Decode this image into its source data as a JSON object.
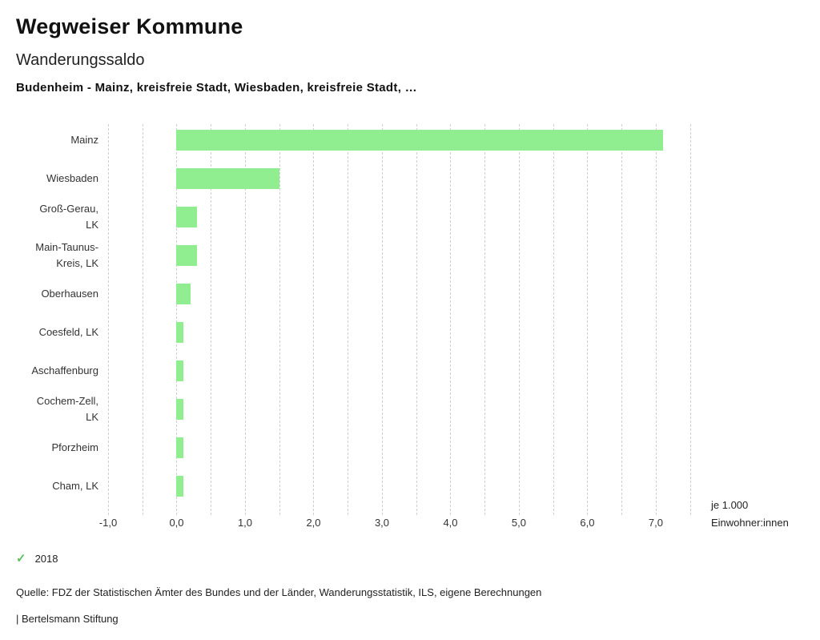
{
  "header": {
    "title": "Wegweiser Kommune",
    "subtitle": "Wanderungssaldo",
    "chart_title": "Budenheim - Mainz, kreisfreie Stadt, Wiesbaden, kreisfreie Stadt, …"
  },
  "chart_data": {
    "type": "bar",
    "orientation": "horizontal",
    "title": "Budenheim - Mainz, kreisfreie Stadt, Wiesbaden, kreisfreie Stadt, …",
    "categories": [
      "Mainz",
      "Wiesbaden",
      "Groß-Gerau, LK",
      "Main-Taunus-Kreis, LK",
      "Oberhausen",
      "Coesfeld, LK",
      "Aschaffenburg",
      "Cochem-Zell, LK",
      "Pforzheim",
      "Cham, LK"
    ],
    "series": [
      {
        "name": "2018",
        "values": [
          7.1,
          1.5,
          0.3,
          0.3,
          0.2,
          0.1,
          0.1,
          0.1,
          0.1,
          0.1
        ]
      }
    ],
    "xlabel": "je 1.000 Einwohner:innen",
    "ylabel": "",
    "xlim": [
      -1.0,
      7.55
    ],
    "grid": true,
    "grid_step": 0.5,
    "grid_max": 7.5,
    "x_ticks": [
      -1,
      0,
      1,
      2,
      3,
      4,
      5,
      6,
      7
    ],
    "x_tick_labels": [
      "-1,0",
      "0,0",
      "1,0",
      "2,0",
      "3,0",
      "4,0",
      "5,0",
      "6,0",
      "7,0"
    ],
    "bar_color": "#90ee90",
    "legend_position": "bottom-left"
  },
  "legend": {
    "label": "2018",
    "check_color": "#5dbf5d"
  },
  "footer": {
    "source": "Quelle: FDZ der Statistischen Ämter des Bundes und der Länder, Wanderungsstatistik, ILS, eigene Berechnungen",
    "branding": "| Bertelsmann Stiftung"
  }
}
